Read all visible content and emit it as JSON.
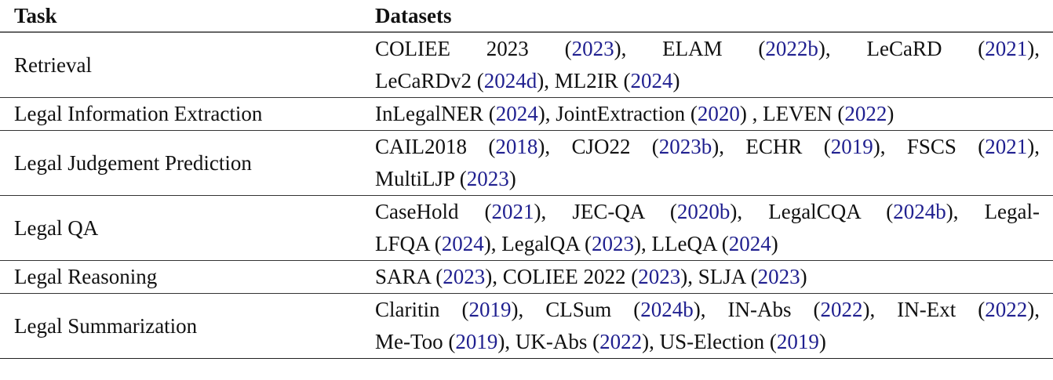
{
  "header": {
    "task": "Task",
    "datasets": "Datasets"
  },
  "cite_color": "#1f1f8f",
  "rows": [
    {
      "task": "Retrieval",
      "lines": [
        [
          {
            "name": "COLIEE 2023",
            "cite": "2023",
            "sep": ", "
          },
          {
            "name": "ELAM",
            "cite": "2022b",
            "sep": ", "
          },
          {
            "name": "LeCaRD",
            "cite": "2021",
            "sep": ","
          }
        ],
        [
          {
            "name": "LeCaRDv2",
            "cite": "2024d",
            "sep": ", "
          },
          {
            "name": "ML2IR",
            "cite": "2024",
            "sep": ""
          }
        ]
      ]
    },
    {
      "task": "Legal Information Extraction",
      "lines": [
        [
          {
            "name": "InLegalNER",
            "cite": "2024",
            "sep": ", "
          },
          {
            "name": "JointExtraction",
            "cite": "2020",
            "sep": " , "
          },
          {
            "name": "LEVEN",
            "cite": "2022",
            "sep": ""
          }
        ]
      ]
    },
    {
      "task": "Legal Judgement Prediction",
      "lines": [
        [
          {
            "name": "CAIL2018",
            "cite": "2018",
            "sep": ", "
          },
          {
            "name": "CJO22",
            "cite": "2023b",
            "sep": ", "
          },
          {
            "name": "ECHR",
            "cite": "2019",
            "sep": ", "
          },
          {
            "name": "FSCS",
            "cite": "2021",
            "sep": ","
          }
        ],
        [
          {
            "name": "MultiLJP",
            "cite": "2023",
            "sep": ""
          }
        ]
      ]
    },
    {
      "task": "Legal QA",
      "lines": [
        [
          {
            "name": "CaseHold",
            "cite": "2021",
            "sep": ", "
          },
          {
            "name": "JEC-QA",
            "cite": "2020b",
            "sep": ", "
          },
          {
            "name": "LegalCQA",
            "cite": "2024b",
            "sep": ", "
          },
          {
            "name": "Legal-",
            "cite": null,
            "sep": ""
          }
        ],
        [
          {
            "name": "LFQA",
            "cite": "2024",
            "sep": ", "
          },
          {
            "name": "LegalQA",
            "cite": "2023",
            "sep": ", "
          },
          {
            "name": "LLeQA",
            "cite": "2024",
            "sep": ""
          }
        ]
      ]
    },
    {
      "task": "Legal Reasoning",
      "lines": [
        [
          {
            "name": "SARA",
            "cite": "2023",
            "sep": ", "
          },
          {
            "name": "COLIEE 2022",
            "cite": "2023",
            "sep": ", "
          },
          {
            "name": "SLJA",
            "cite": "2023",
            "sep": ""
          }
        ]
      ]
    },
    {
      "task": "Legal Summarization",
      "lines": [
        [
          {
            "name": "Claritin",
            "cite": "2019",
            "sep": ", "
          },
          {
            "name": "CLSum",
            "cite": "2024b",
            "sep": ", "
          },
          {
            "name": "IN-Abs",
            "cite": "2022",
            "sep": ", "
          },
          {
            "name": "IN-Ext",
            "cite": "2022",
            "sep": ","
          }
        ],
        [
          {
            "name": "Me-Too",
            "cite": "2019",
            "sep": ", "
          },
          {
            "name": "UK-Abs",
            "cite": "2022",
            "sep": ", "
          },
          {
            "name": "US-Election",
            "cite": "2019",
            "sep": ""
          }
        ]
      ]
    }
  ]
}
